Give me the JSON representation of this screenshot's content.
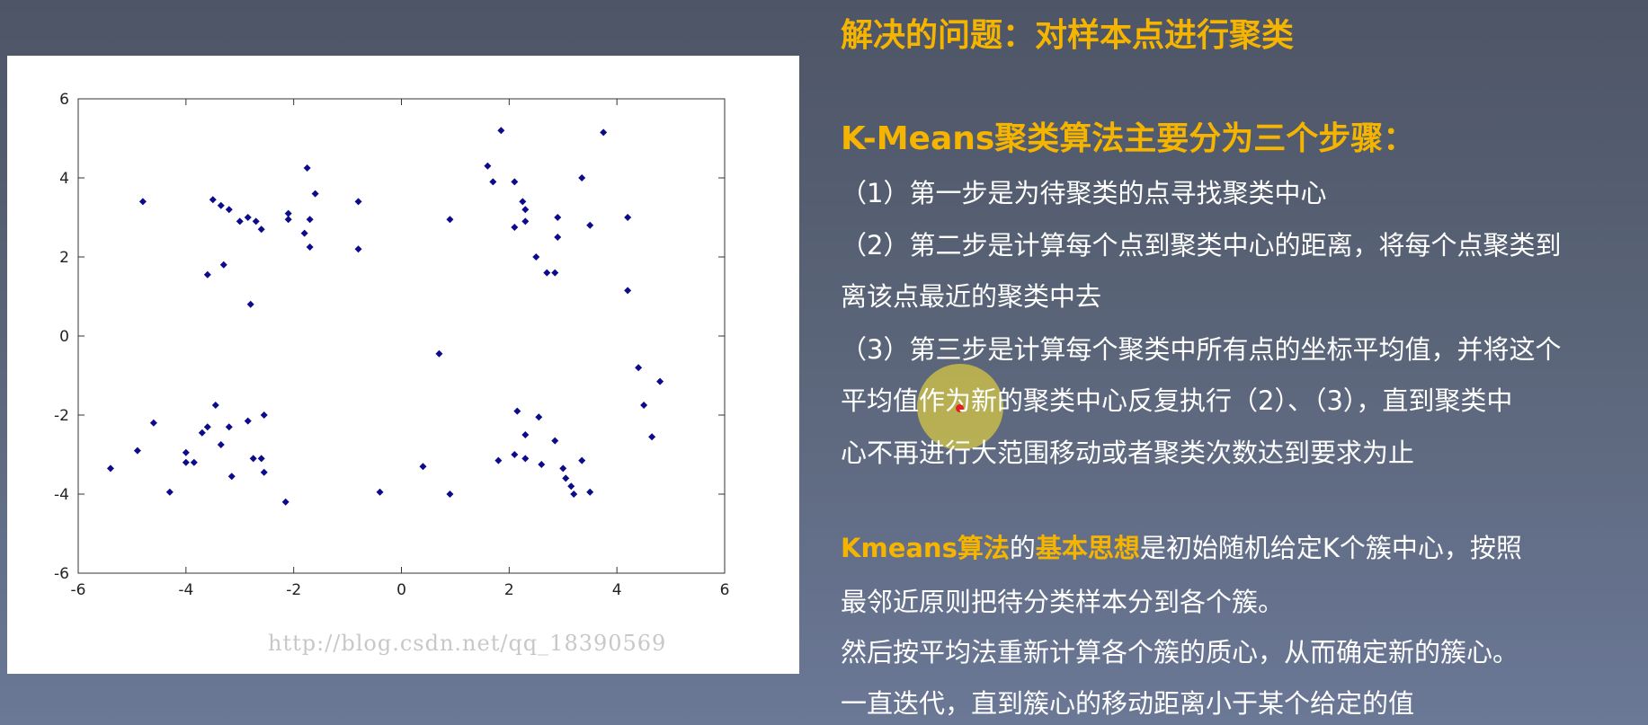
{
  "chart_data": {
    "type": "scatter",
    "title": "",
    "xlabel": "",
    "ylabel": "",
    "xlim": [
      -6,
      6
    ],
    "ylim": [
      -6,
      6
    ],
    "xticks": [
      "-6",
      "-4",
      "-2",
      "0",
      "2",
      "4",
      "6"
    ],
    "yticks": [
      "6",
      "4",
      "2",
      "0",
      "-2",
      "-4",
      "-6"
    ],
    "xtick_values": [
      -6,
      -4,
      -2,
      0,
      2,
      4,
      6
    ],
    "ytick_values": [
      6,
      4,
      2,
      0,
      -2,
      -4,
      -6
    ],
    "marker_color": "#0b0b8c",
    "points": [
      [
        -4.8,
        3.4
      ],
      [
        -3.5,
        3.45
      ],
      [
        -3.35,
        3.3
      ],
      [
        -3.2,
        3.2
      ],
      [
        -3.0,
        2.9
      ],
      [
        -2.85,
        3.0
      ],
      [
        -2.7,
        2.9
      ],
      [
        -2.6,
        2.7
      ],
      [
        -2.1,
        3.1
      ],
      [
        -2.1,
        2.95
      ],
      [
        -1.75,
        4.25
      ],
      [
        -1.7,
        2.95
      ],
      [
        -1.6,
        3.6
      ],
      [
        -1.8,
        2.6
      ],
      [
        -1.7,
        2.25
      ],
      [
        -0.8,
        3.4
      ],
      [
        -0.8,
        2.2
      ],
      [
        -3.3,
        1.8
      ],
      [
        -3.6,
        1.55
      ],
      [
        -2.8,
        0.8
      ],
      [
        1.6,
        4.3
      ],
      [
        1.85,
        5.2
      ],
      [
        1.7,
        3.9
      ],
      [
        2.1,
        3.9
      ],
      [
        2.25,
        3.4
      ],
      [
        2.3,
        3.2
      ],
      [
        2.3,
        2.9
      ],
      [
        2.1,
        2.75
      ],
      [
        2.9,
        3.0
      ],
      [
        2.9,
        2.5
      ],
      [
        2.5,
        2.0
      ],
      [
        2.7,
        1.6
      ],
      [
        2.85,
        1.6
      ],
      [
        3.35,
        4.0
      ],
      [
        3.5,
        2.8
      ],
      [
        3.75,
        5.15
      ],
      [
        4.2,
        3.0
      ],
      [
        4.2,
        1.15
      ],
      [
        0.9,
        2.95
      ],
      [
        0.7,
        -0.45
      ],
      [
        -5.4,
        -3.35
      ],
      [
        -4.9,
        -2.9
      ],
      [
        -4.6,
        -2.2
      ],
      [
        -4.3,
        -3.95
      ],
      [
        -4.0,
        -2.95
      ],
      [
        -4.0,
        -3.2
      ],
      [
        -3.85,
        -3.2
      ],
      [
        -3.7,
        -2.45
      ],
      [
        -3.6,
        -2.3
      ],
      [
        -3.45,
        -1.75
      ],
      [
        -3.35,
        -2.75
      ],
      [
        -3.2,
        -2.3
      ],
      [
        -3.15,
        -3.55
      ],
      [
        -2.85,
        -2.15
      ],
      [
        -2.75,
        -3.1
      ],
      [
        -2.6,
        -3.1
      ],
      [
        -2.55,
        -2.0
      ],
      [
        -2.55,
        -3.45
      ],
      [
        -2.15,
        -4.2
      ],
      [
        -0.4,
        -3.95
      ],
      [
        0.4,
        -3.3
      ],
      [
        0.9,
        -4.0
      ],
      [
        1.8,
        -3.15
      ],
      [
        2.1,
        -3.0
      ],
      [
        2.15,
        -1.9
      ],
      [
        2.3,
        -2.5
      ],
      [
        2.3,
        -3.1
      ],
      [
        2.55,
        -2.05
      ],
      [
        2.6,
        -3.25
      ],
      [
        2.85,
        -2.65
      ],
      [
        3.0,
        -3.35
      ],
      [
        3.05,
        -3.6
      ],
      [
        3.15,
        -3.8
      ],
      [
        3.2,
        -4.0
      ],
      [
        3.35,
        -3.15
      ],
      [
        3.5,
        -3.95
      ],
      [
        4.4,
        -0.8
      ],
      [
        4.5,
        -1.75
      ],
      [
        4.65,
        -2.55
      ],
      [
        4.8,
        -1.15
      ]
    ]
  },
  "watermark": "http://blog.csdn.net/qq_18390569",
  "colors": {
    "accent": "#f5b400",
    "body_text": "#ffffff",
    "cursor_halo": "#e8d63c",
    "cursor_dot": "#e02020"
  },
  "content": {
    "problem_heading": "解决的问题：对样本点进行聚类",
    "steps_heading": "K-Means聚类算法主要分为三个步骤：",
    "step1": "（1）第一步是为待聚类的点寻找聚类中心",
    "step2_line1": "（2）第二步是计算每个点到聚类中心的距离，将每个点聚类到",
    "step2_line2": "离该点最近的聚类中去",
    "step3_line1": "（3）第三步是计算每个聚类中所有点的坐标平均值，并将这个",
    "step3_line2": "平均值作为新的聚类中心反复执行（2）、（3），直到聚类中",
    "step3_line3": "心不再进行大范围移动或者聚类次数达到要求为止",
    "idea_hl1": "Kmeans算法",
    "idea_mid": "的",
    "idea_hl2": "基本思想",
    "idea_rest": "是初始随机给定K个簇中心，按照",
    "idea_line2": "最邻近原则把待分类样本分到各个簇。",
    "idea_line3": "然后按平均法重新计算各个簇的质心，从而确定新的簇心。",
    "idea_line4": "一直迭代，直到簇心的移动距离小于某个给定的值"
  }
}
